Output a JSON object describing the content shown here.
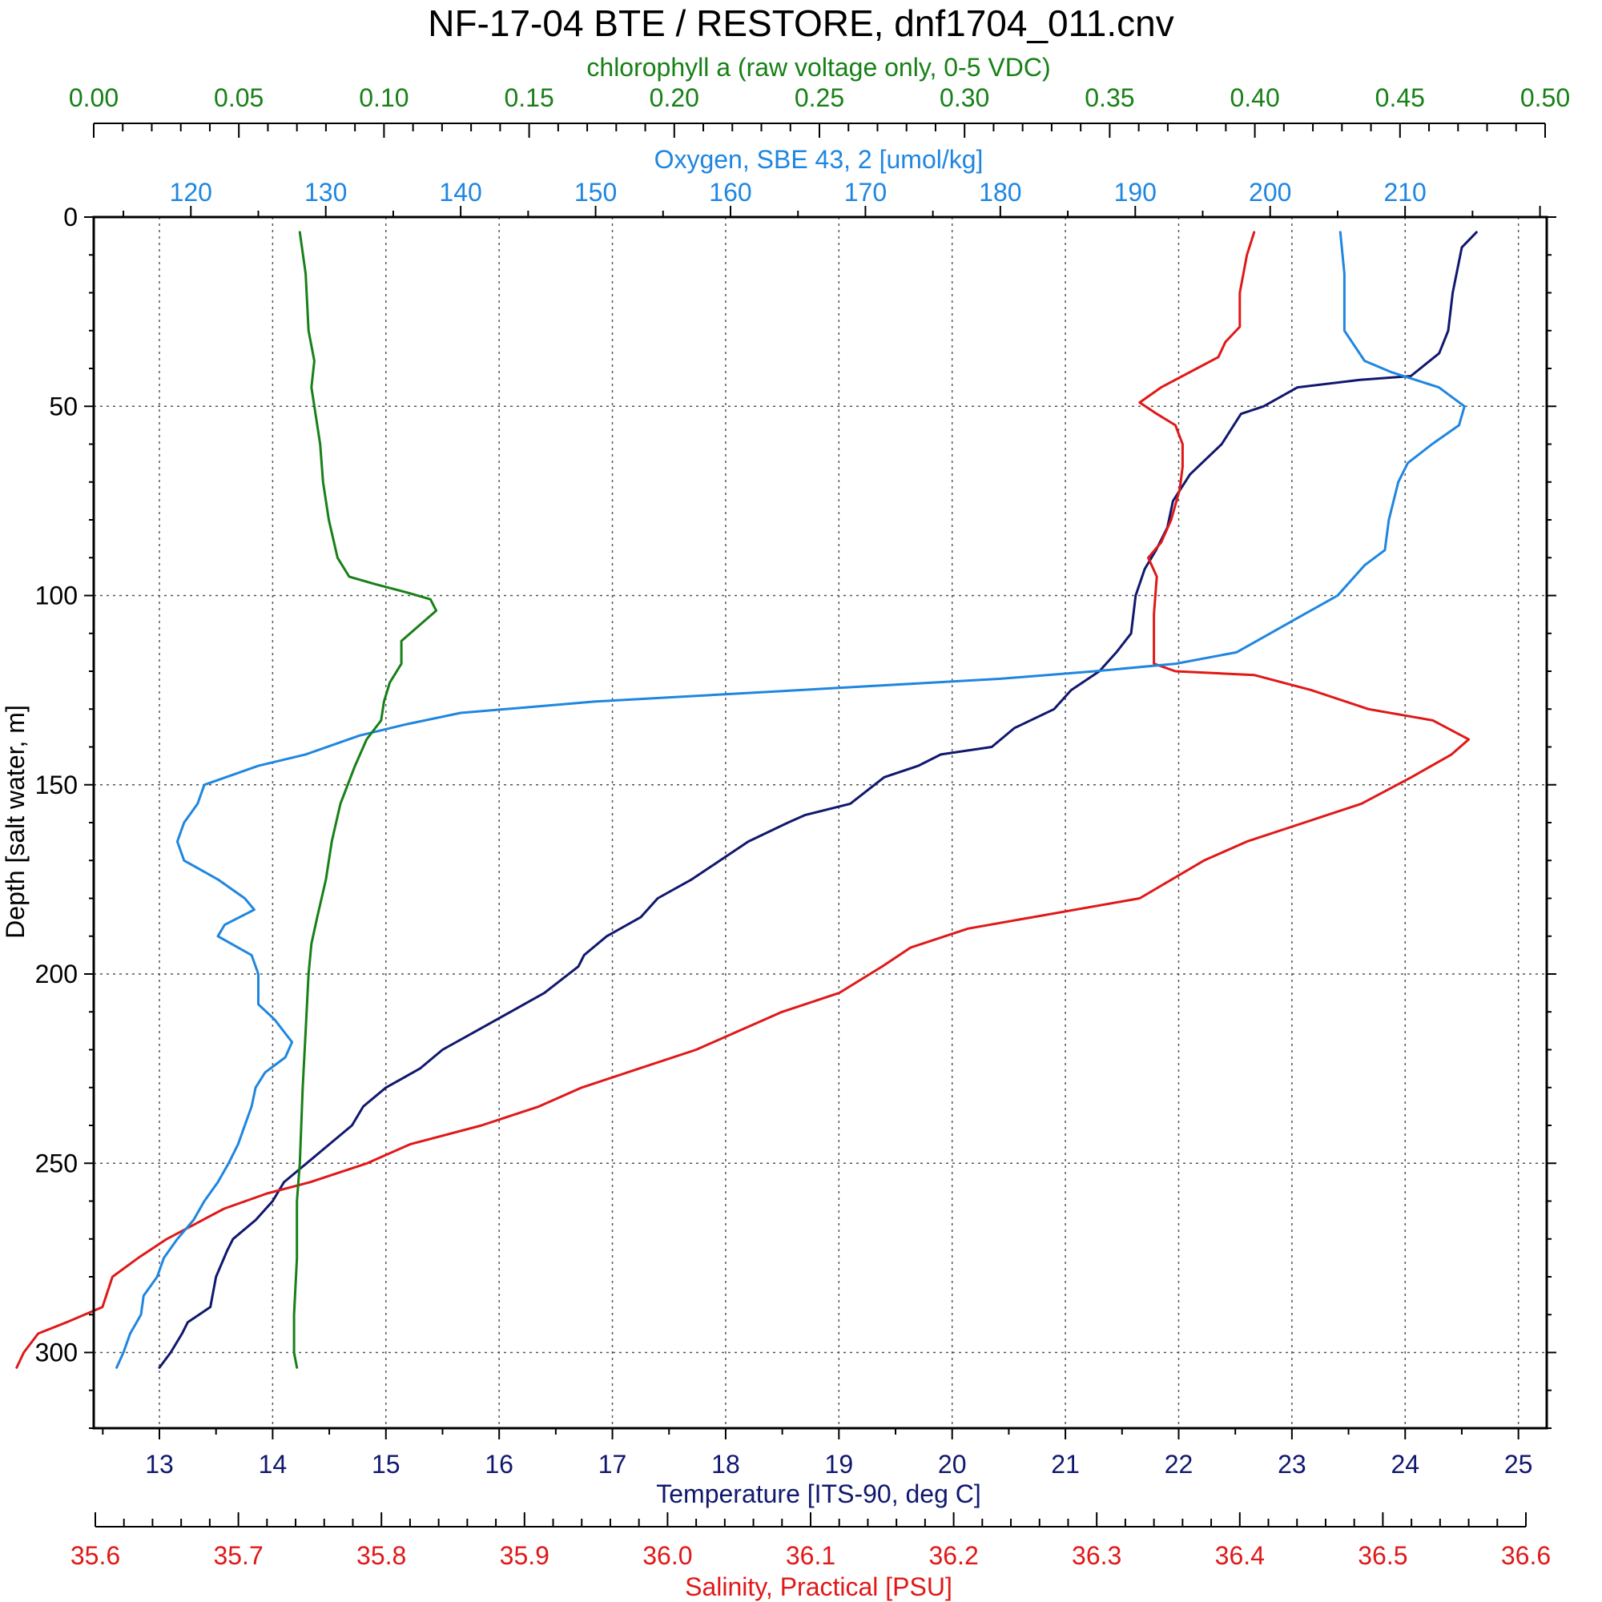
{
  "chart_data": {
    "type": "line",
    "title": "NF-17-04 BTE / RESTORE, dnf1704_011.cnv",
    "grid": true,
    "legend": "none",
    "y_axis": {
      "label": "Depth [salt water, m]",
      "range": [
        0,
        320
      ],
      "inverted": true,
      "ticks": [
        0,
        50,
        100,
        150,
        200,
        250,
        300
      ]
    },
    "x_axes": {
      "chlorophyll": {
        "label": "chlorophyll a (raw voltage only, 0-5 VDC)",
        "color": "#178017",
        "range": [
          0.0,
          0.5
        ],
        "ticks": [
          "0.00",
          "0.05",
          "0.10",
          "0.15",
          "0.20",
          "0.25",
          "0.30",
          "0.35",
          "0.40",
          "0.45",
          "0.50"
        ]
      },
      "oxygen": {
        "label": "Oxygen, SBE 43, 2 [umol/kg]",
        "color": "#1f86e0",
        "range": [
          112.8,
          220.5
        ],
        "ticks": [
          "120",
          "130",
          "140",
          "150",
          "160",
          "170",
          "180",
          "190",
          "200",
          "210"
        ]
      },
      "temperature": {
        "label": "Temperature [ITS-90, deg C]",
        "color": "#10186e",
        "range": [
          12.42,
          25.25
        ],
        "ticks": [
          "13",
          "14",
          "15",
          "16",
          "17",
          "18",
          "19",
          "20",
          "21",
          "22",
          "23",
          "24",
          "25"
        ]
      },
      "salinity": {
        "label": "Salinity, Practical [PSU]",
        "color": "#e01818",
        "range": [
          35.6,
          36.6
        ],
        "ticks": [
          "35.6",
          "35.7",
          "35.8",
          "35.9",
          "36.0",
          "36.1",
          "36.2",
          "36.3",
          "36.4",
          "36.5",
          "36.6"
        ]
      }
    },
    "series": [
      {
        "name": "Temperature",
        "axis": "temperature",
        "color": "#10186e",
        "points": [
          [
            24.63,
            4
          ],
          [
            24.5,
            8
          ],
          [
            24.42,
            20
          ],
          [
            24.38,
            30
          ],
          [
            24.3,
            36
          ],
          [
            24.05,
            42
          ],
          [
            23.6,
            43
          ],
          [
            23.05,
            45
          ],
          [
            22.75,
            50
          ],
          [
            22.55,
            52
          ],
          [
            22.38,
            60
          ],
          [
            22.1,
            68
          ],
          [
            21.95,
            75
          ],
          [
            21.9,
            82
          ],
          [
            21.8,
            88
          ],
          [
            21.7,
            93
          ],
          [
            21.62,
            100
          ],
          [
            21.58,
            110
          ],
          [
            21.45,
            115
          ],
          [
            21.3,
            120
          ],
          [
            21.05,
            125
          ],
          [
            20.9,
            130
          ],
          [
            20.55,
            135
          ],
          [
            20.35,
            140
          ],
          [
            19.9,
            142
          ],
          [
            19.7,
            145
          ],
          [
            19.4,
            148
          ],
          [
            19.1,
            155
          ],
          [
            18.7,
            158
          ],
          [
            18.55,
            160
          ],
          [
            18.2,
            165
          ],
          [
            17.95,
            170
          ],
          [
            17.7,
            175
          ],
          [
            17.4,
            180
          ],
          [
            17.25,
            185
          ],
          [
            16.95,
            190
          ],
          [
            16.75,
            195
          ],
          [
            16.7,
            198
          ],
          [
            16.4,
            205
          ],
          [
            16.1,
            210
          ],
          [
            15.8,
            215
          ],
          [
            15.5,
            220
          ],
          [
            15.3,
            225
          ],
          [
            15.0,
            230
          ],
          [
            14.8,
            235
          ],
          [
            14.7,
            240
          ],
          [
            14.5,
            245
          ],
          [
            14.3,
            250
          ],
          [
            14.1,
            255
          ],
          [
            14.0,
            260
          ],
          [
            13.85,
            265
          ],
          [
            13.65,
            270
          ],
          [
            13.6,
            273
          ],
          [
            13.5,
            280
          ],
          [
            13.45,
            288
          ],
          [
            13.25,
            292
          ],
          [
            13.2,
            295
          ],
          [
            13.1,
            300
          ],
          [
            13.0,
            304
          ]
        ]
      },
      {
        "name": "Salinity",
        "axis": "salinity",
        "color": "#e01818",
        "points": [
          [
            36.41,
            4
          ],
          [
            36.405,
            10
          ],
          [
            36.4,
            20
          ],
          [
            36.4,
            29
          ],
          [
            36.39,
            33
          ],
          [
            36.385,
            37
          ],
          [
            36.37,
            40
          ],
          [
            36.345,
            45
          ],
          [
            36.33,
            49
          ],
          [
            36.342,
            52
          ],
          [
            36.355,
            55
          ],
          [
            36.36,
            60
          ],
          [
            36.36,
            66
          ],
          [
            36.358,
            72
          ],
          [
            36.352,
            80
          ],
          [
            36.345,
            86
          ],
          [
            36.336,
            90
          ],
          [
            36.342,
            95
          ],
          [
            36.34,
            105
          ],
          [
            36.34,
            110
          ],
          [
            36.34,
            118
          ],
          [
            36.355,
            120
          ],
          [
            36.41,
            121
          ],
          [
            36.45,
            125
          ],
          [
            36.49,
            130
          ],
          [
            36.535,
            133
          ],
          [
            36.56,
            138
          ],
          [
            36.548,
            142
          ],
          [
            36.52,
            148
          ],
          [
            36.485,
            155
          ],
          [
            36.445,
            160
          ],
          [
            36.405,
            165
          ],
          [
            36.375,
            170
          ],
          [
            36.33,
            180
          ],
          [
            36.21,
            188
          ],
          [
            36.17,
            193
          ],
          [
            36.15,
            198
          ],
          [
            36.12,
            205
          ],
          [
            36.08,
            210
          ],
          [
            36.05,
            215
          ],
          [
            36.02,
            220
          ],
          [
            35.98,
            225
          ],
          [
            35.94,
            230
          ],
          [
            35.91,
            235
          ],
          [
            35.87,
            240
          ],
          [
            35.82,
            245
          ],
          [
            35.79,
            250
          ],
          [
            35.75,
            255
          ],
          [
            35.72,
            258
          ],
          [
            35.69,
            262
          ],
          [
            35.67,
            266
          ],
          [
            35.65,
            270
          ],
          [
            35.63,
            275
          ],
          [
            35.612,
            280
          ],
          [
            35.605,
            288
          ],
          [
            35.58,
            292
          ],
          [
            35.56,
            295
          ],
          [
            35.55,
            300
          ],
          [
            35.545,
            304
          ]
        ]
      },
      {
        "name": "Oxygen",
        "axis": "oxygen",
        "color": "#1f86e0",
        "points": [
          [
            205.2,
            4
          ],
          [
            205.5,
            15
          ],
          [
            205.5,
            30
          ],
          [
            207.0,
            38
          ],
          [
            209.0,
            41
          ],
          [
            212.5,
            45
          ],
          [
            214.4,
            50
          ],
          [
            214.0,
            55
          ],
          [
            212.0,
            60
          ],
          [
            210.2,
            65
          ],
          [
            209.5,
            70
          ],
          [
            208.8,
            80
          ],
          [
            208.5,
            88
          ],
          [
            207.0,
            92
          ],
          [
            205.0,
            100
          ],
          [
            202.5,
            105
          ],
          [
            200.0,
            110
          ],
          [
            197.5,
            115
          ],
          [
            193.0,
            118
          ],
          [
            187.0,
            120
          ],
          [
            180.0,
            122
          ],
          [
            170.0,
            124
          ],
          [
            160.0,
            126
          ],
          [
            150.0,
            128
          ],
          [
            140.0,
            131
          ],
          [
            136.0,
            134
          ],
          [
            132.5,
            137
          ],
          [
            128.5,
            142
          ],
          [
            125.0,
            145
          ],
          [
            121.0,
            150
          ],
          [
            120.5,
            155
          ],
          [
            119.5,
            160
          ],
          [
            119.0,
            165
          ],
          [
            119.5,
            170
          ],
          [
            122.0,
            175
          ],
          [
            124.0,
            180
          ],
          [
            124.7,
            183
          ],
          [
            122.5,
            187
          ],
          [
            122.0,
            190
          ],
          [
            124.5,
            195
          ],
          [
            125.0,
            200
          ],
          [
            125.0,
            208
          ],
          [
            126.2,
            212
          ],
          [
            127.5,
            218
          ],
          [
            127.0,
            222
          ],
          [
            125.5,
            226
          ],
          [
            124.8,
            230
          ],
          [
            124.5,
            235
          ],
          [
            124.0,
            240
          ],
          [
            123.5,
            245
          ],
          [
            122.8,
            250
          ],
          [
            122.0,
            255
          ],
          [
            121.0,
            260
          ],
          [
            120.2,
            265
          ],
          [
            119.0,
            270
          ],
          [
            118.0,
            275
          ],
          [
            117.5,
            280
          ],
          [
            116.5,
            285
          ],
          [
            116.3,
            290
          ],
          [
            115.5,
            295
          ],
          [
            115.0,
            300
          ],
          [
            114.5,
            304
          ]
        ]
      },
      {
        "name": "Chlorophyll a",
        "axis": "chlorophyll",
        "color": "#178017",
        "points": [
          [
            0.071,
            4
          ],
          [
            0.073,
            15
          ],
          [
            0.074,
            30
          ],
          [
            0.076,
            38
          ],
          [
            0.075,
            45
          ],
          [
            0.078,
            60
          ],
          [
            0.079,
            70
          ],
          [
            0.081,
            80
          ],
          [
            0.084,
            90
          ],
          [
            0.088,
            95
          ],
          [
            0.097,
            97
          ],
          [
            0.107,
            99
          ],
          [
            0.116,
            101
          ],
          [
            0.118,
            104
          ],
          [
            0.112,
            108
          ],
          [
            0.106,
            112
          ],
          [
            0.106,
            118
          ],
          [
            0.102,
            123
          ],
          [
            0.1,
            128
          ],
          [
            0.099,
            133
          ],
          [
            0.094,
            138
          ],
          [
            0.09,
            145
          ],
          [
            0.085,
            155
          ],
          [
            0.082,
            165
          ],
          [
            0.08,
            175
          ],
          [
            0.077,
            185
          ],
          [
            0.075,
            192
          ],
          [
            0.074,
            200
          ],
          [
            0.073,
            215
          ],
          [
            0.072,
            230
          ],
          [
            0.071,
            250
          ],
          [
            0.07,
            260
          ],
          [
            0.07,
            275
          ],
          [
            0.069,
            290
          ],
          [
            0.069,
            300
          ],
          [
            0.07,
            304
          ]
        ]
      }
    ]
  }
}
